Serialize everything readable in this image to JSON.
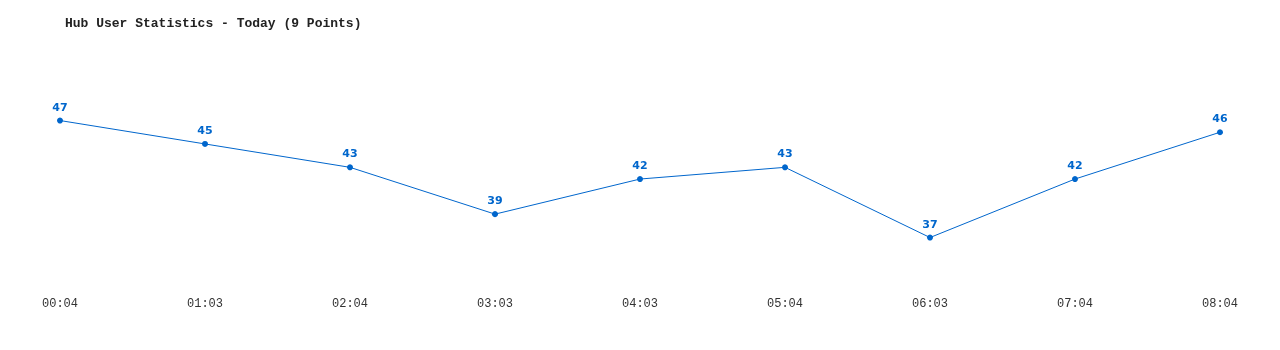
{
  "chart_data": {
    "type": "line",
    "title": "Hub User Statistics - Today (9 Points)",
    "categories": [
      "00:04",
      "01:03",
      "02:04",
      "03:03",
      "04:03",
      "05:04",
      "06:03",
      "07:04",
      "08:04"
    ],
    "series": [
      {
        "color": "#0066cc",
        "values": [
          47,
          45,
          43,
          39,
          42,
          43,
          37,
          42,
          46
        ]
      }
    ],
    "data_labels": true,
    "marker": "circle",
    "line_style": "solid",
    "grid": false,
    "tick_labels": "x"
  }
}
